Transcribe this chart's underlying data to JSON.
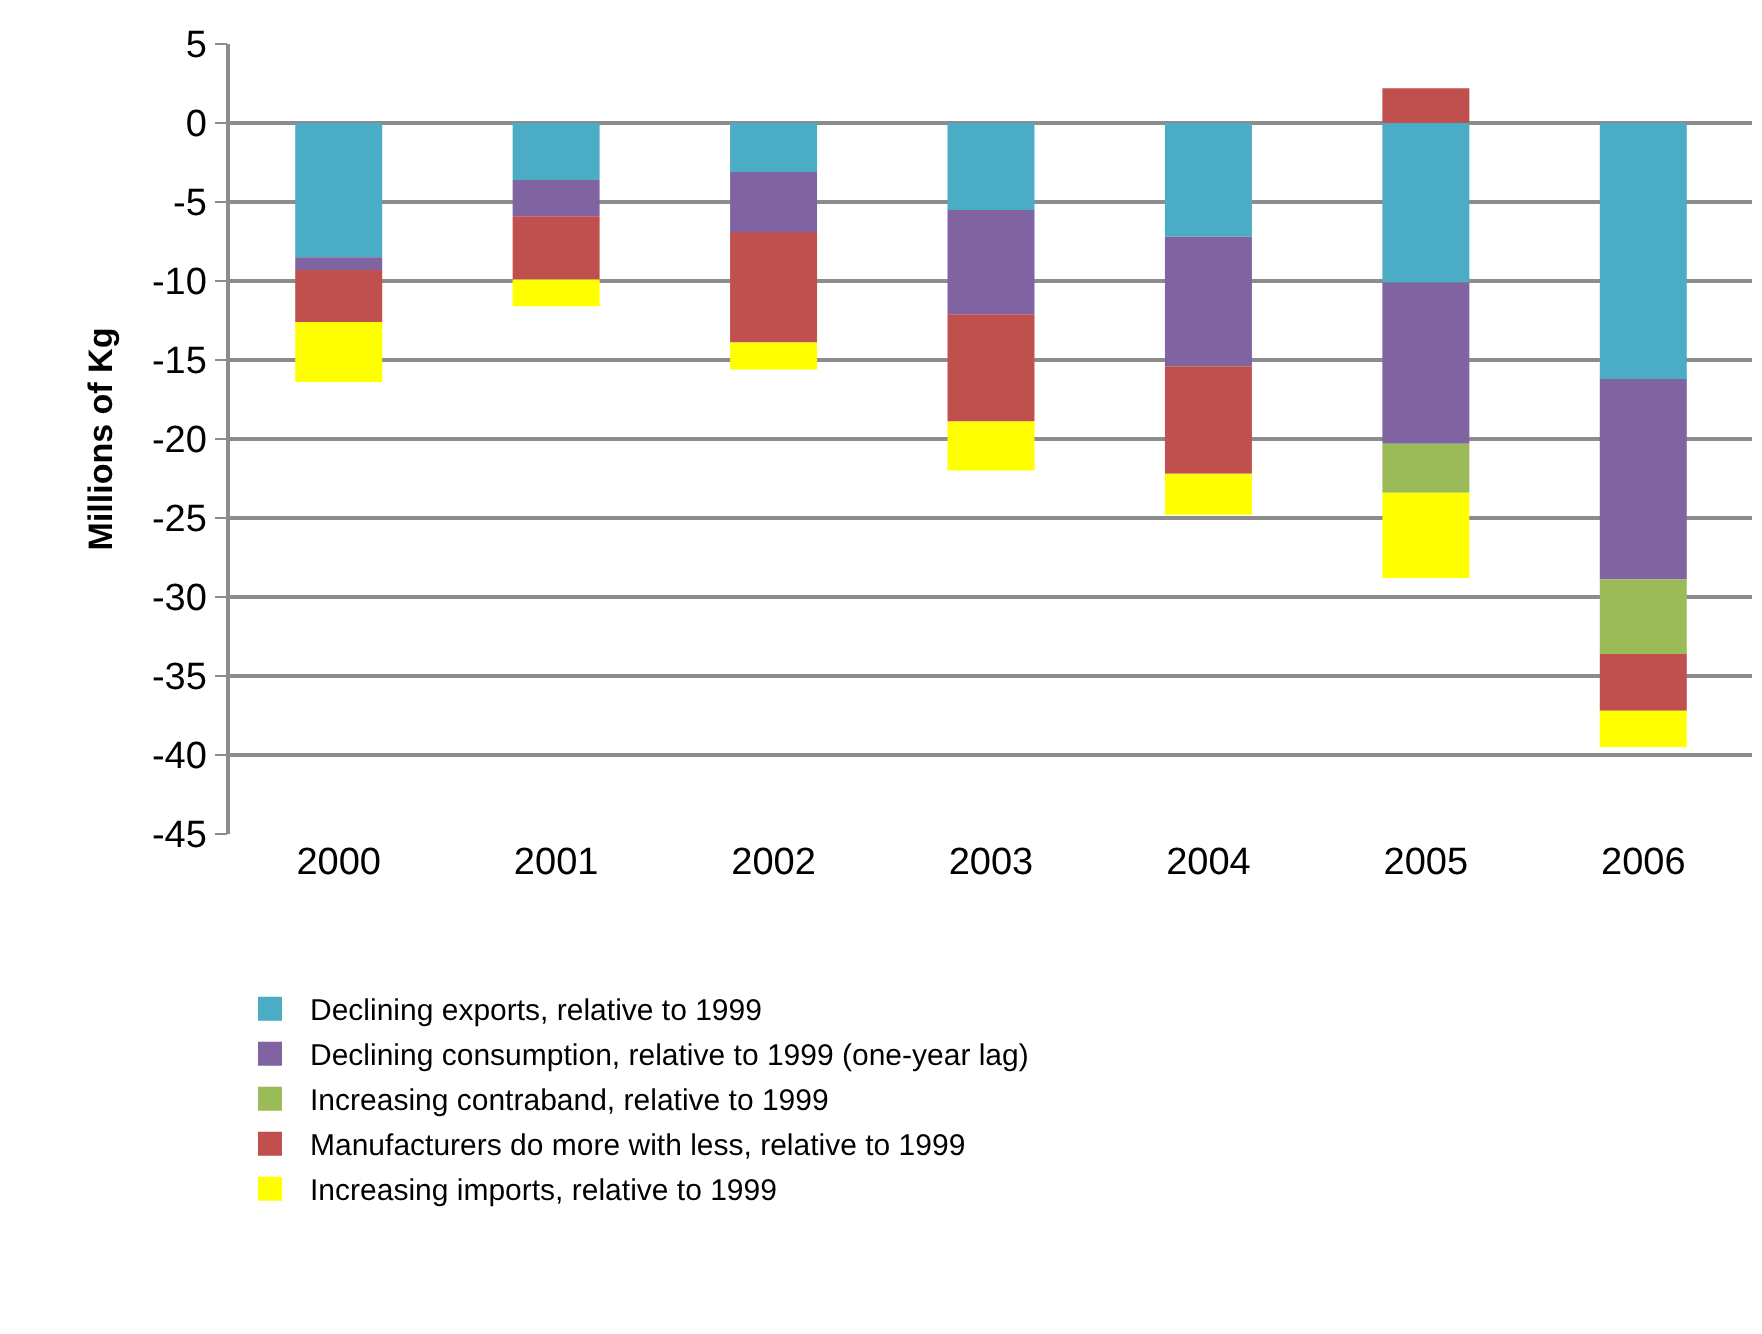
{
  "chart_data": {
    "type": "bar",
    "stacked": true,
    "ylabel": "Millions of Kg",
    "categories": [
      "2000",
      "2001",
      "2002",
      "2003",
      "2004",
      "2005",
      "2006"
    ],
    "series": [
      {
        "name": "Declining exports, relative to 1999",
        "color": "#4bacc6",
        "values": [
          -8.5,
          -3.6,
          -3.1,
          -5.5,
          -7.2,
          -10.1,
          -16.2
        ]
      },
      {
        "name": "Declining consumption, relative to 1999 (one-year lag)",
        "color": "#8064a2",
        "values": [
          -0.8,
          -2.3,
          -3.8,
          -6.6,
          -8.2,
          -10.2,
          -12.7
        ]
      },
      {
        "name": "Increasing contraband, relative to 1999",
        "color": "#9bbb59",
        "values": [
          null,
          null,
          null,
          null,
          null,
          -3.1,
          -4.7
        ]
      },
      {
        "name": "Manufacturers do more with less, relative to 1999",
        "color": "#c0504d",
        "values": [
          -3.3,
          -4.0,
          -7.0,
          -6.8,
          -6.8,
          2.2,
          -3.6
        ]
      },
      {
        "name": "Increasing imports, relative to 1999",
        "color": "#ffff00",
        "values": [
          -3.8,
          -1.7,
          -1.7,
          -3.1,
          -2.6,
          -5.4,
          -2.3
        ]
      }
    ],
    "ylim": [
      -45,
      5
    ],
    "yticks": [
      5,
      0,
      -5,
      -10,
      -15,
      -20,
      -25,
      -30,
      -35,
      -40,
      -45
    ],
    "grid": "y",
    "legend": "bottom"
  }
}
